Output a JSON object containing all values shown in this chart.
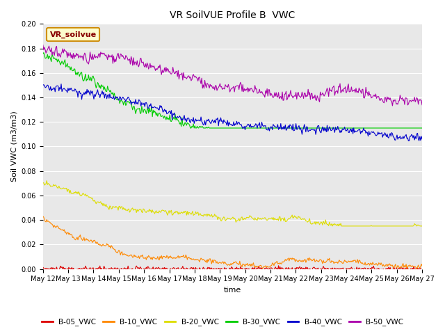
{
  "title": "VR SoilVUE Profile B  VWC",
  "ylabel": "Soil VWC (m3/m3)",
  "xlabel": "time",
  "ylim": [
    0.0,
    0.2
  ],
  "yticks": [
    0.0,
    0.02,
    0.04,
    0.06,
    0.08,
    0.1,
    0.12,
    0.14,
    0.16,
    0.18,
    0.2
  ],
  "xtick_labels": [
    "May 12",
    "May 13",
    "May 14",
    "May 15",
    "May 16",
    "May 17",
    "May 18",
    "May 19",
    "May 20",
    "May 21",
    "May 22",
    "May 23",
    "May 24",
    "May 25",
    "May 26",
    "May 27"
  ],
  "legend_label": "VR_soilvue",
  "colors": {
    "B-05_VWC": "#dd0000",
    "B-10_VWC": "#ff8800",
    "B-20_VWC": "#dddd00",
    "B-30_VWC": "#00cc00",
    "B-40_VWC": "#0000cc",
    "B-50_VWC": "#aa00aa"
  },
  "bg_color": "#e8e8e8",
  "fig_bg": "#ffffff",
  "grid_color": "#ffffff",
  "n_points": 500,
  "title_fontsize": 10,
  "axis_fontsize": 8,
  "tick_fontsize": 7
}
